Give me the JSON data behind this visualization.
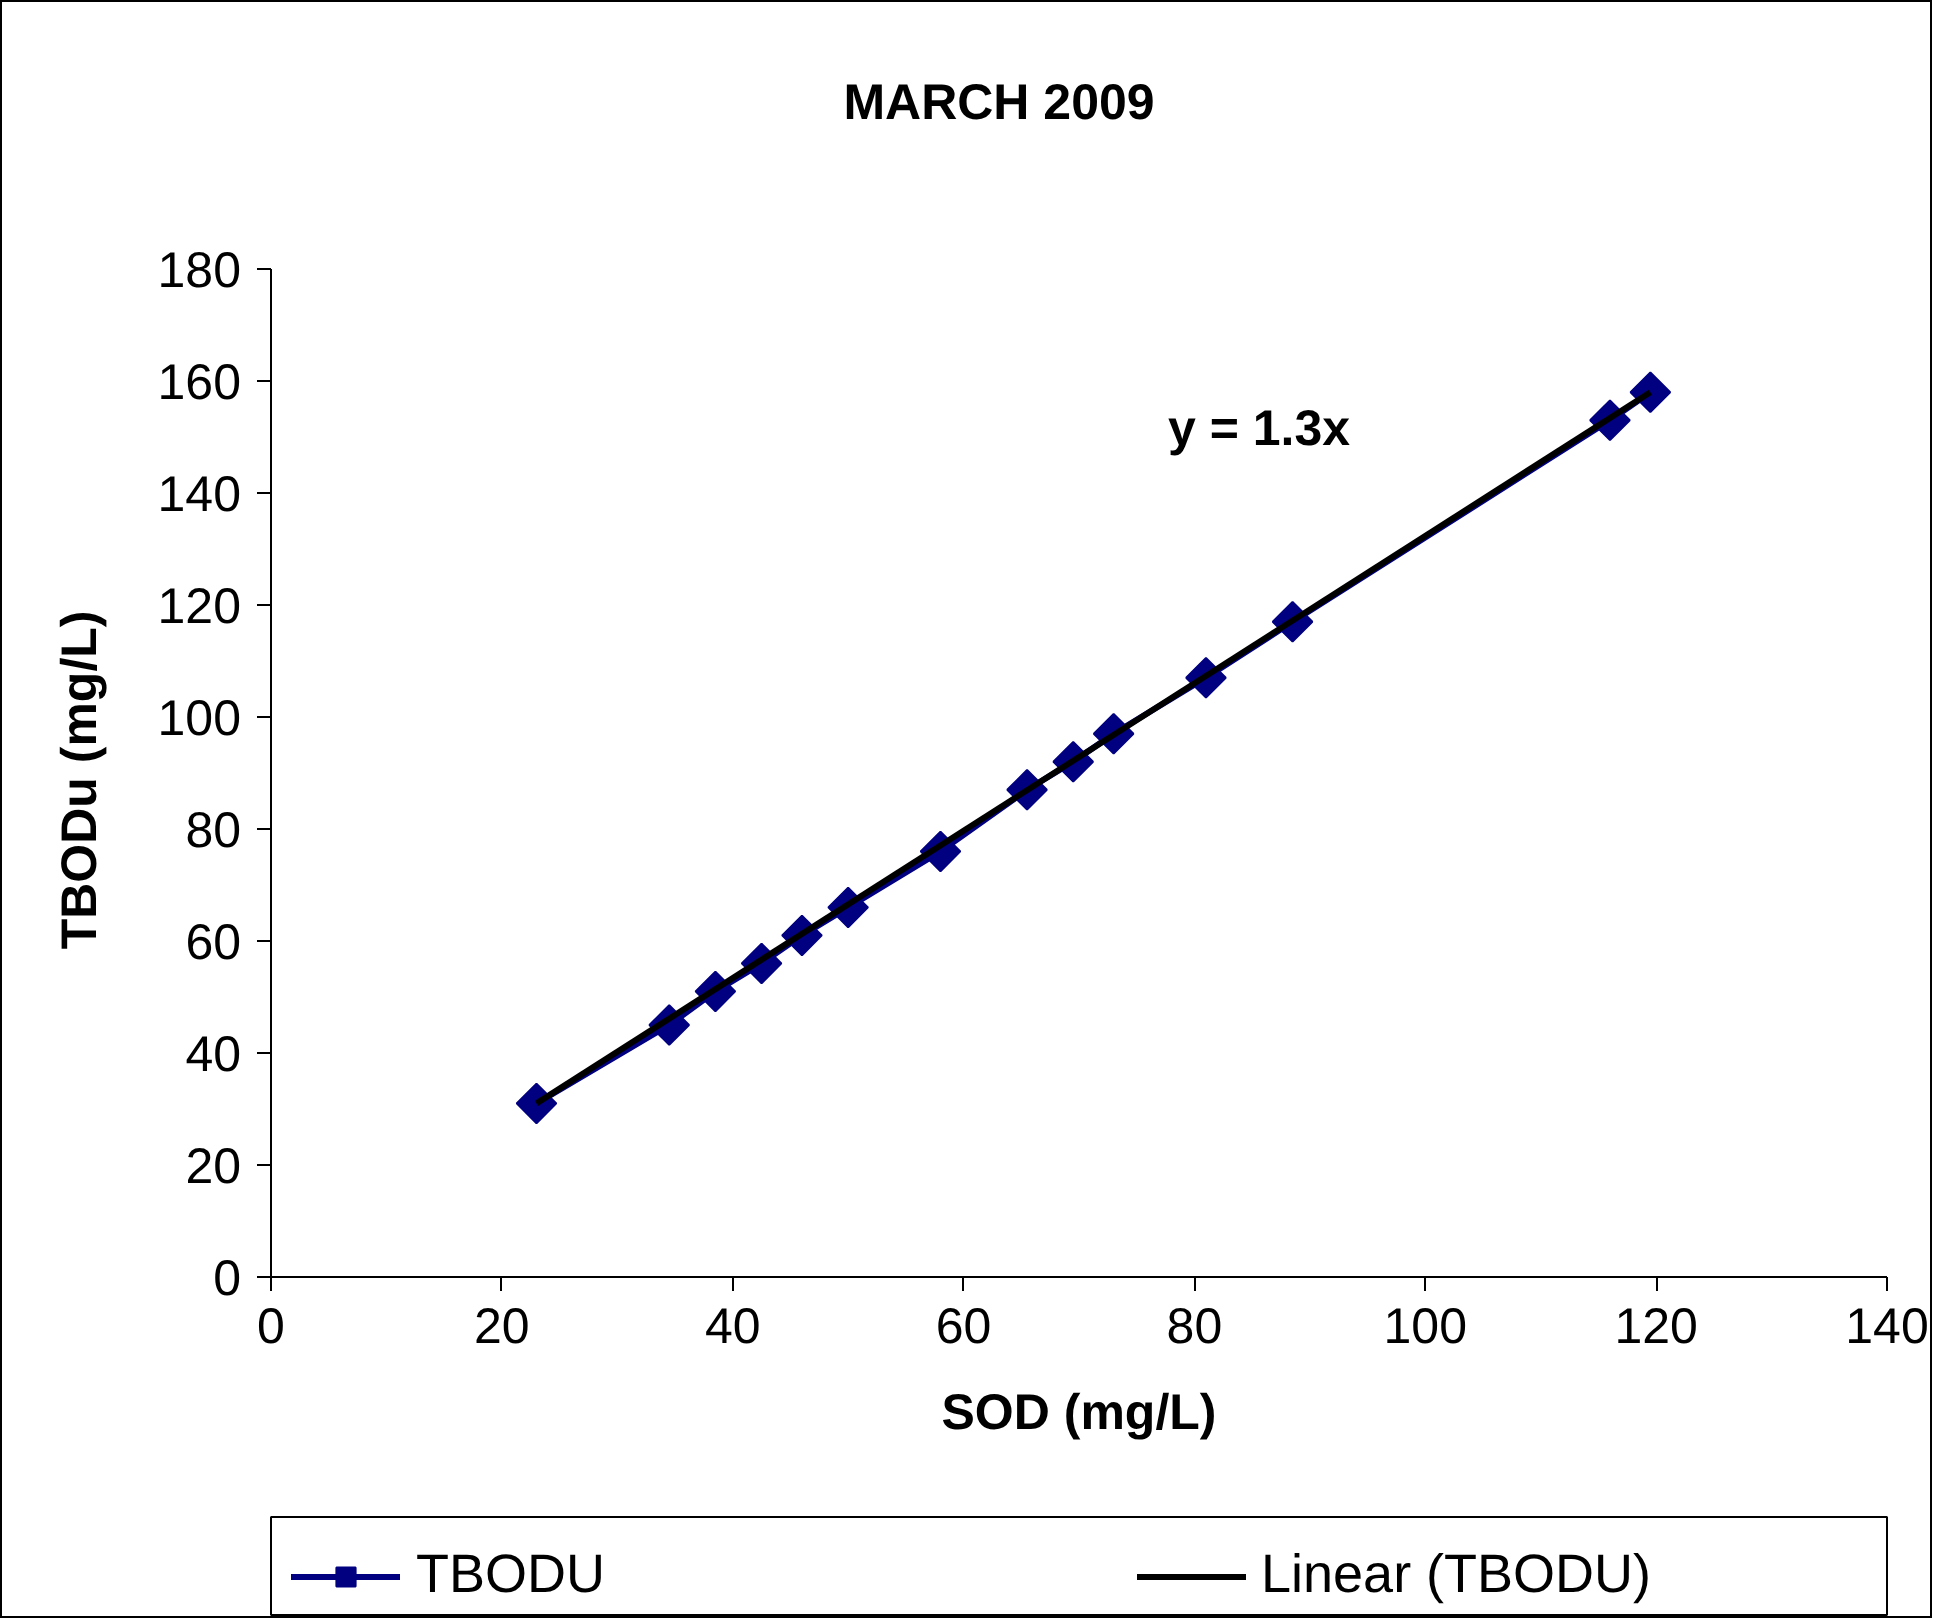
{
  "chart_data": {
    "type": "line",
    "title": "MARCH 2009",
    "xlabel": "SOD (mg/L)",
    "ylabel": "TBODu  (mg/L)",
    "xlim": [
      0,
      140
    ],
    "xticks": [
      0,
      20,
      40,
      60,
      80,
      100,
      120,
      140
    ],
    "ylim": [
      0,
      180
    ],
    "yticks": [
      0,
      20,
      40,
      60,
      80,
      100,
      120,
      140,
      160,
      180
    ],
    "grid": false,
    "legend": "bottom",
    "marker": "diamond",
    "line_style": "solid",
    "x": [
      23,
      34.5,
      38.5,
      42.5,
      46,
      50,
      58,
      65.5,
      69.5,
      73,
      81,
      88.5,
      116,
      119.5
    ],
    "series": [
      {
        "name": "TBODU",
        "color": "#000080",
        "values": [
          31,
          45,
          51,
          56,
          61,
          66,
          76,
          87,
          92,
          97,
          107,
          117,
          153,
          158
        ]
      },
      {
        "name": "Linear (TBODU)",
        "type": "line",
        "color": "#000000",
        "marker": "none",
        "x": [
          23,
          119.5
        ],
        "values": [
          31,
          158
        ]
      }
    ],
    "annotations": [
      "y = 1.3x"
    ]
  }
}
